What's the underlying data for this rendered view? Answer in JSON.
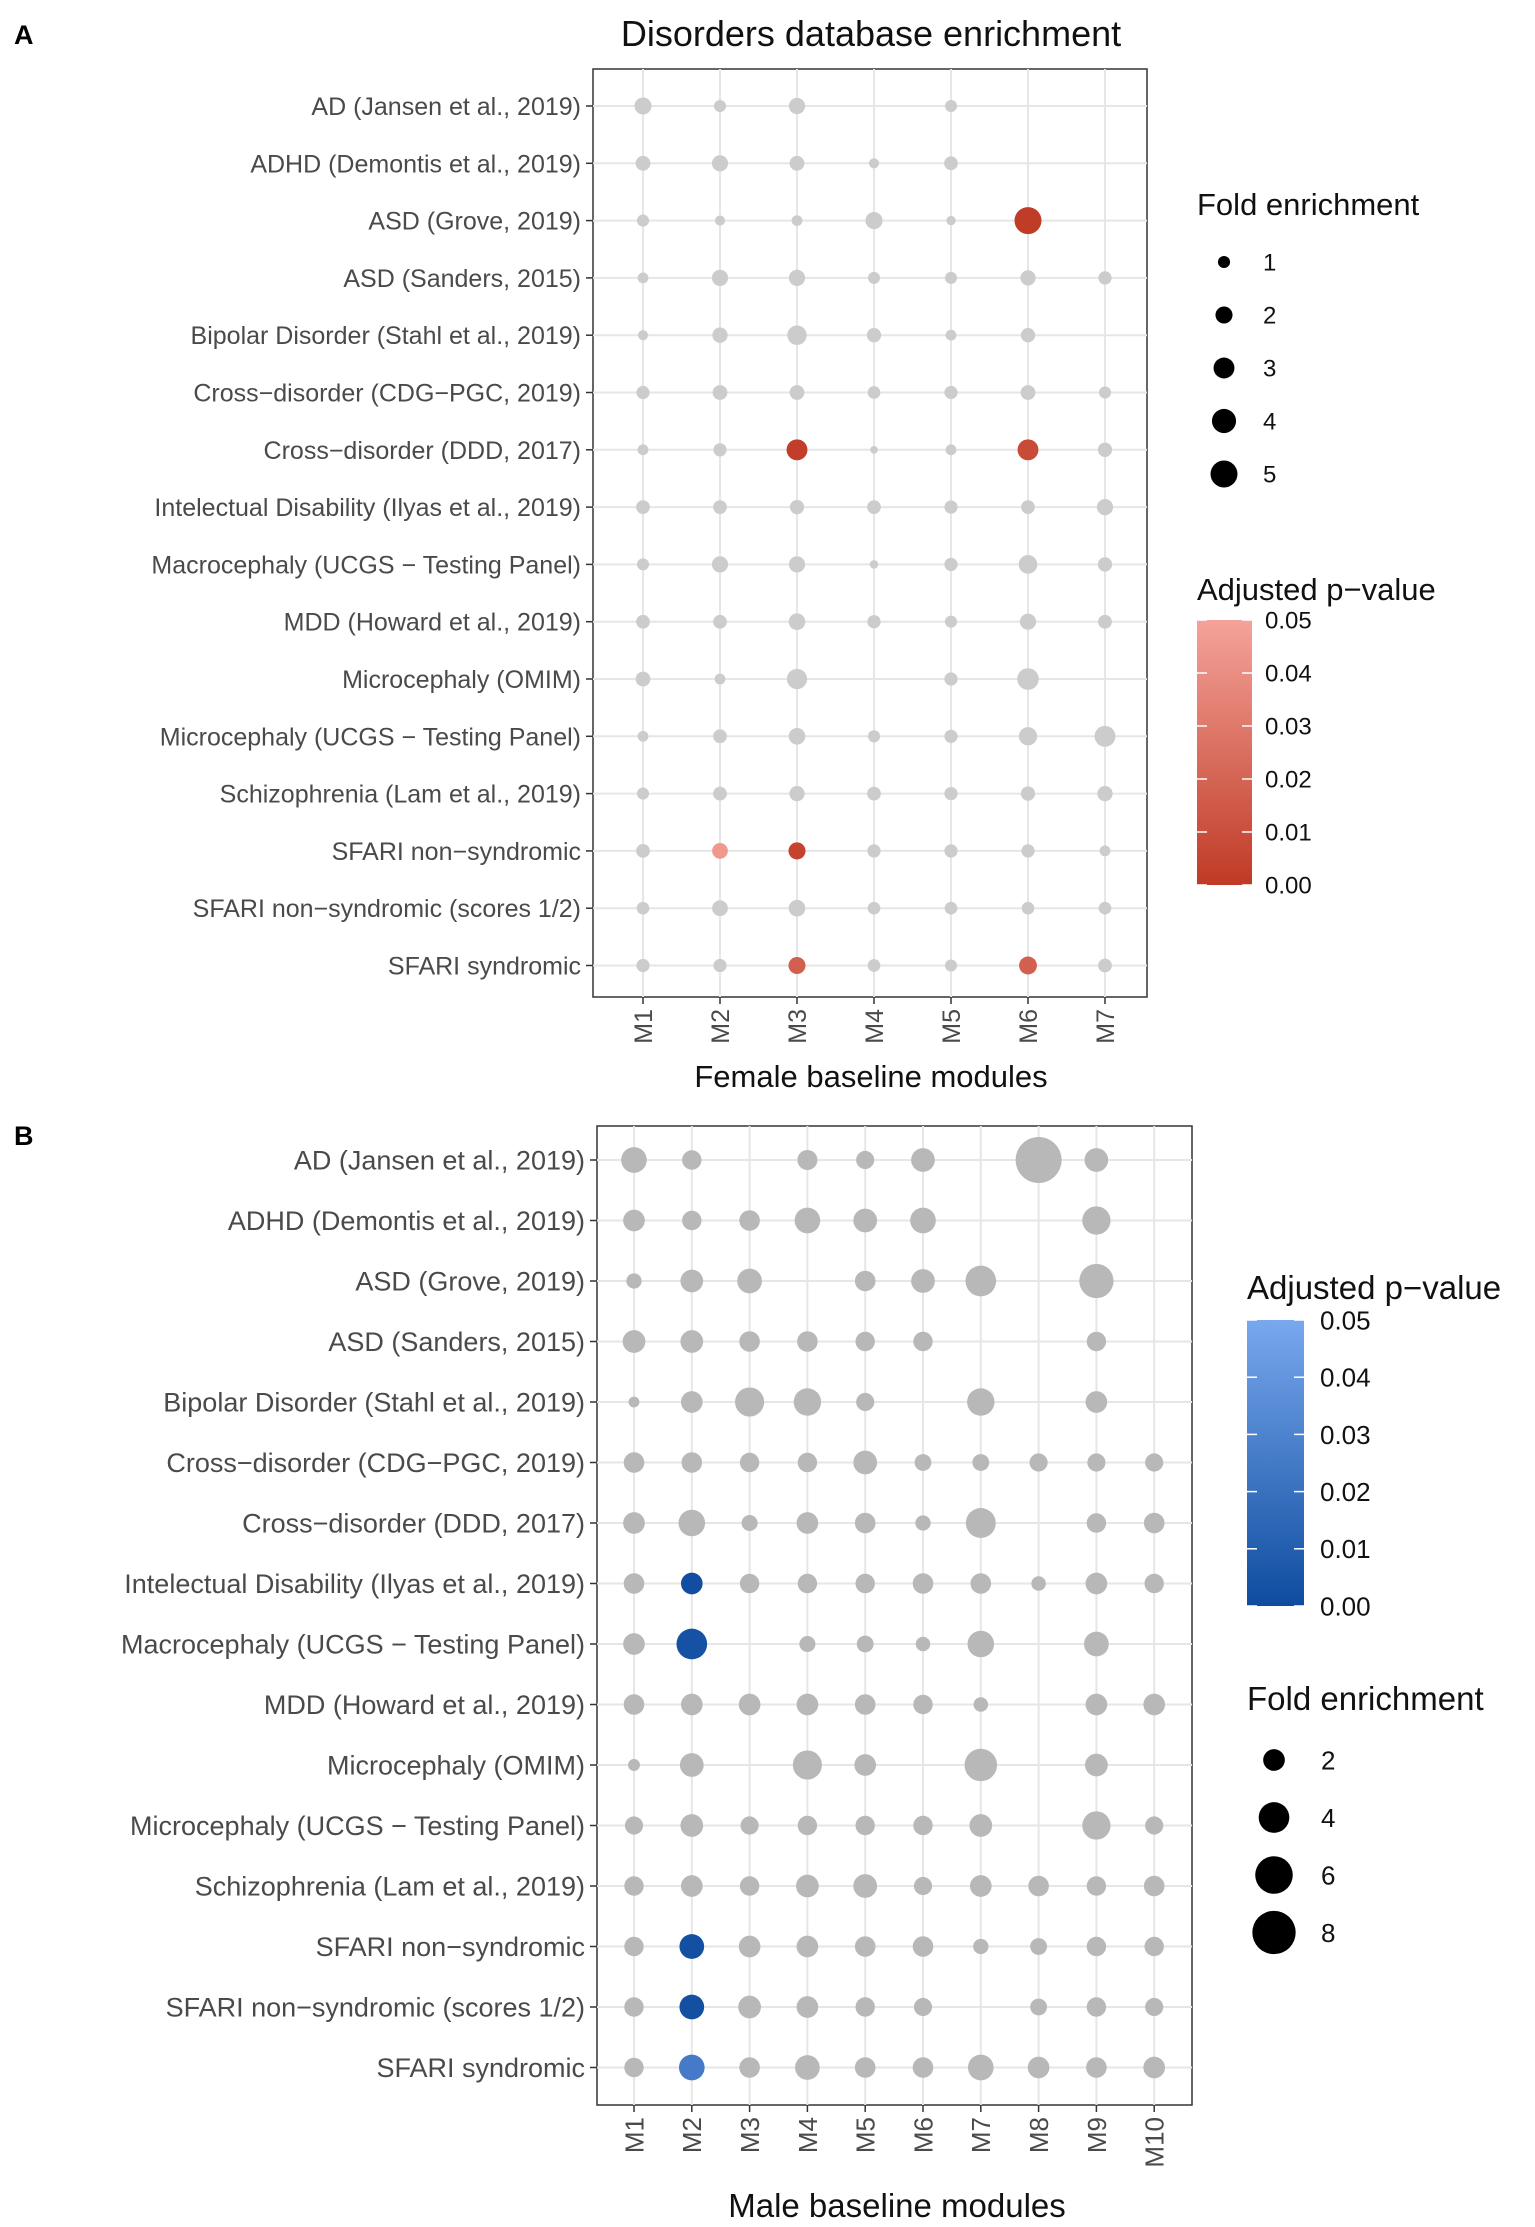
{
  "chart_data": [
    {
      "panel": "A",
      "type": "scatter",
      "title": "Disorders database enrichment",
      "xlabel": "Female baseline modules",
      "ylabel": "",
      "categories": [
        "M1",
        "M2",
        "M3",
        "M4",
        "M5",
        "M6",
        "M7"
      ],
      "rows": [
        "AD (Jansen et al., 2019)",
        "ADHD (Demontis et al., 2019)",
        "ASD (Grove, 2019)",
        "ASD (Sanders, 2015)",
        "Bipolar Disorder (Stahl et al., 2019)",
        "Cross−disorder (CDG−PGC, 2019)",
        "Cross−disorder (DDD, 2017)",
        "Intelectual Disability (Ilyas et al., 2019)",
        "Macrocephaly (UCGS − Testing Panel)",
        "MDD (Howard et al., 2019)",
        "Microcephaly (OMIM)",
        "Microcephaly (UCGS − Testing Panel)",
        "Schizophrenia (Lam et al., 2019)",
        "SFARI non−syndromic",
        "SFARI non−syndromic (scores 1/2)",
        "SFARI syndromic"
      ],
      "fold_enrichment": [
        [
          2.0,
          1.0,
          1.8,
          null,
          1.0,
          null,
          null
        ],
        [
          1.5,
          1.8,
          1.5,
          0.7,
          1.3,
          null,
          null
        ],
        [
          1.0,
          0.7,
          0.8,
          2.0,
          0.6,
          5.0,
          null
        ],
        [
          0.8,
          1.8,
          1.8,
          1.0,
          1.0,
          1.6,
          1.2
        ],
        [
          0.7,
          1.6,
          2.6,
          1.4,
          0.8,
          1.4,
          null
        ],
        [
          1.2,
          1.5,
          1.5,
          1.1,
          1.2,
          1.5,
          1.0
        ],
        [
          0.8,
          1.2,
          3.0,
          0.4,
          0.8,
          3.0,
          1.4
        ],
        [
          1.3,
          1.3,
          1.4,
          1.3,
          1.2,
          1.3,
          1.8
        ],
        [
          1.0,
          1.8,
          1.8,
          0.5,
          1.2,
          2.4,
          1.4
        ],
        [
          1.3,
          1.3,
          1.9,
          1.2,
          1.0,
          1.8,
          1.3
        ],
        [
          1.5,
          0.8,
          2.8,
          null,
          1.2,
          3.2,
          null
        ],
        [
          0.8,
          1.3,
          1.9,
          1.0,
          1.2,
          2.3,
          3.0
        ],
        [
          1.0,
          1.3,
          1.6,
          1.3,
          1.2,
          1.4,
          1.6
        ],
        [
          1.3,
          1.7,
          2.0,
          1.2,
          1.2,
          1.2,
          0.8
        ],
        [
          1.1,
          1.7,
          1.9,
          1.1,
          1.1,
          1.1,
          1.1
        ],
        [
          1.2,
          1.2,
          2.0,
          1.1,
          1.0,
          2.2,
          1.3
        ]
      ],
      "padj": [
        [
          null,
          null,
          null,
          null,
          null,
          null,
          null
        ],
        [
          null,
          null,
          null,
          null,
          null,
          null,
          null
        ],
        [
          null,
          null,
          null,
          null,
          null,
          0.001,
          null
        ],
        [
          null,
          null,
          null,
          null,
          null,
          null,
          null
        ],
        [
          null,
          null,
          null,
          null,
          null,
          null,
          null
        ],
        [
          null,
          null,
          null,
          null,
          null,
          null,
          null
        ],
        [
          null,
          null,
          0.002,
          null,
          null,
          0.008,
          null
        ],
        [
          null,
          null,
          null,
          null,
          null,
          null,
          null
        ],
        [
          null,
          null,
          null,
          null,
          null,
          null,
          null
        ],
        [
          null,
          null,
          null,
          null,
          null,
          null,
          null
        ],
        [
          null,
          null,
          null,
          null,
          null,
          null,
          null
        ],
        [
          null,
          null,
          null,
          null,
          null,
          null,
          null
        ],
        [
          null,
          null,
          null,
          null,
          null,
          null,
          null
        ],
        [
          null,
          0.045,
          0.004,
          null,
          null,
          null,
          null
        ],
        [
          null,
          null,
          null,
          null,
          null,
          null,
          null
        ],
        [
          null,
          null,
          0.018,
          null,
          null,
          0.018,
          null
        ]
      ],
      "legend_size": {
        "title": "Fold enrichment",
        "values": [
          1,
          2,
          3,
          4,
          5
        ],
        "labels": [
          "1",
          "2",
          "3",
          "4",
          "5"
        ]
      },
      "legend_color": {
        "title": "Adjusted p−value",
        "range": [
          0,
          0.05
        ],
        "ticks": [
          "0.05",
          "0.04",
          "0.03",
          "0.02",
          "0.01",
          "0.00"
        ],
        "color_low": "#c03a25",
        "color_high": "#f4a39a"
      },
      "nonsignificant_color": "#cccccc",
      "grid": true,
      "legend_position": "right"
    },
    {
      "panel": "B",
      "type": "scatter",
      "title": "",
      "xlabel": "Male baseline modules",
      "ylabel": "",
      "categories": [
        "M1",
        "M2",
        "M3",
        "M4",
        "M5",
        "M6",
        "M7",
        "M8",
        "M9",
        "M10"
      ],
      "rows": [
        "AD (Jansen et al., 2019)",
        "ADHD (Demontis et al., 2019)",
        "ASD (Grove, 2019)",
        "ASD (Sanders, 2015)",
        "Bipolar Disorder (Stahl et al., 2019)",
        "Cross−disorder (CDG−PGC, 2019)",
        "Cross−disorder (DDD, 2017)",
        "Intelectual Disability (Ilyas et al., 2019)",
        "Macrocephaly (UCGS − Testing Panel)",
        "MDD (Howard et al., 2019)",
        "Microcephaly (OMIM)",
        "Microcephaly (UCGS − Testing Panel)",
        "Schizophrenia (Lam et al., 2019)",
        "SFARI non−syndromic",
        "SFARI non−syndromic (scores 1/2)",
        "SFARI syndromic"
      ],
      "fold_enrichment": [
        [
          2.8,
          1.6,
          null,
          1.7,
          1.4,
          2.4,
          null,
          9.0,
          2.4,
          null
        ],
        [
          2.0,
          1.6,
          1.8,
          2.8,
          2.4,
          2.8,
          null,
          null,
          3.4,
          null
        ],
        [
          1.0,
          2.2,
          2.6,
          null,
          1.8,
          2.4,
          4.0,
          null,
          5.0,
          null
        ],
        [
          2.2,
          2.2,
          1.8,
          1.8,
          1.6,
          1.6,
          null,
          null,
          1.6,
          null
        ],
        [
          0.5,
          2.0,
          3.6,
          3.2,
          1.4,
          null,
          3.2,
          null,
          2.0,
          null
        ],
        [
          1.8,
          1.8,
          1.6,
          1.6,
          2.4,
          1.2,
          1.2,
          1.4,
          1.4,
          1.4
        ],
        [
          2.0,
          3.0,
          1.1,
          2.0,
          1.8,
          1.0,
          3.8,
          null,
          1.6,
          1.8
        ],
        [
          1.8,
          2.0,
          1.6,
          1.6,
          1.6,
          1.8,
          1.8,
          0.9,
          2.0,
          1.6
        ],
        [
          2.0,
          4.0,
          null,
          1.1,
          1.2,
          0.9,
          3.0,
          null,
          2.6,
          null
        ],
        [
          1.8,
          2.0,
          2.0,
          2.0,
          1.8,
          1.6,
          0.9,
          null,
          2.0,
          2.0
        ],
        [
          0.6,
          2.4,
          null,
          3.6,
          2.0,
          null,
          4.5,
          null,
          2.2,
          null
        ],
        [
          1.4,
          2.2,
          1.4,
          1.6,
          1.6,
          1.6,
          2.2,
          null,
          3.4,
          1.4
        ],
        [
          1.6,
          2.0,
          1.6,
          2.2,
          2.4,
          1.4,
          2.0,
          1.8,
          1.6,
          1.8
        ],
        [
          1.6,
          2.6,
          2.0,
          2.0,
          1.8,
          1.8,
          1.0,
          1.2,
          1.6,
          1.6
        ],
        [
          1.6,
          2.6,
          2.2,
          2.0,
          1.6,
          1.4,
          null,
          1.2,
          1.6,
          1.4
        ],
        [
          1.6,
          2.8,
          1.8,
          2.6,
          1.8,
          1.8,
          2.8,
          2.0,
          1.8,
          2.0
        ]
      ],
      "padj": [
        [
          null,
          null,
          null,
          null,
          null,
          null,
          null,
          null,
          null,
          null
        ],
        [
          null,
          null,
          null,
          null,
          null,
          null,
          null,
          null,
          null,
          null
        ],
        [
          null,
          null,
          null,
          null,
          null,
          null,
          null,
          null,
          null,
          null
        ],
        [
          null,
          null,
          null,
          null,
          null,
          null,
          null,
          null,
          null,
          null
        ],
        [
          null,
          null,
          null,
          null,
          null,
          null,
          null,
          null,
          null,
          null
        ],
        [
          null,
          null,
          null,
          null,
          null,
          null,
          null,
          null,
          null,
          null
        ],
        [
          null,
          null,
          null,
          null,
          null,
          null,
          null,
          null,
          null,
          null
        ],
        [
          null,
          0.001,
          null,
          null,
          null,
          null,
          null,
          null,
          null,
          null
        ],
        [
          null,
          0.003,
          null,
          null,
          null,
          null,
          null,
          null,
          null,
          null
        ],
        [
          null,
          null,
          null,
          null,
          null,
          null,
          null,
          null,
          null,
          null
        ],
        [
          null,
          null,
          null,
          null,
          null,
          null,
          null,
          null,
          null,
          null
        ],
        [
          null,
          null,
          null,
          null,
          null,
          null,
          null,
          null,
          null,
          null
        ],
        [
          null,
          null,
          null,
          null,
          null,
          null,
          null,
          null,
          null,
          null
        ],
        [
          null,
          0.002,
          null,
          null,
          null,
          null,
          null,
          null,
          null,
          null
        ],
        [
          null,
          0.002,
          null,
          null,
          null,
          null,
          null,
          null,
          null,
          null
        ],
        [
          null,
          0.025,
          null,
          null,
          null,
          null,
          null,
          null,
          null,
          null
        ]
      ],
      "legend_size": {
        "title": "Fold enrichment",
        "values": [
          2,
          4,
          6,
          8
        ],
        "labels": [
          "2",
          "4",
          "6",
          "8"
        ]
      },
      "legend_color": {
        "title": "Adjusted p−value",
        "range": [
          0,
          0.05
        ],
        "ticks": [
          "0.05",
          "0.04",
          "0.03",
          "0.02",
          "0.01",
          "0.00"
        ],
        "color_low": "#0f4c9f",
        "color_high": "#78a8ee"
      },
      "nonsignificant_color": "#b8b8b8",
      "grid": true,
      "legend_position": "right"
    }
  ]
}
